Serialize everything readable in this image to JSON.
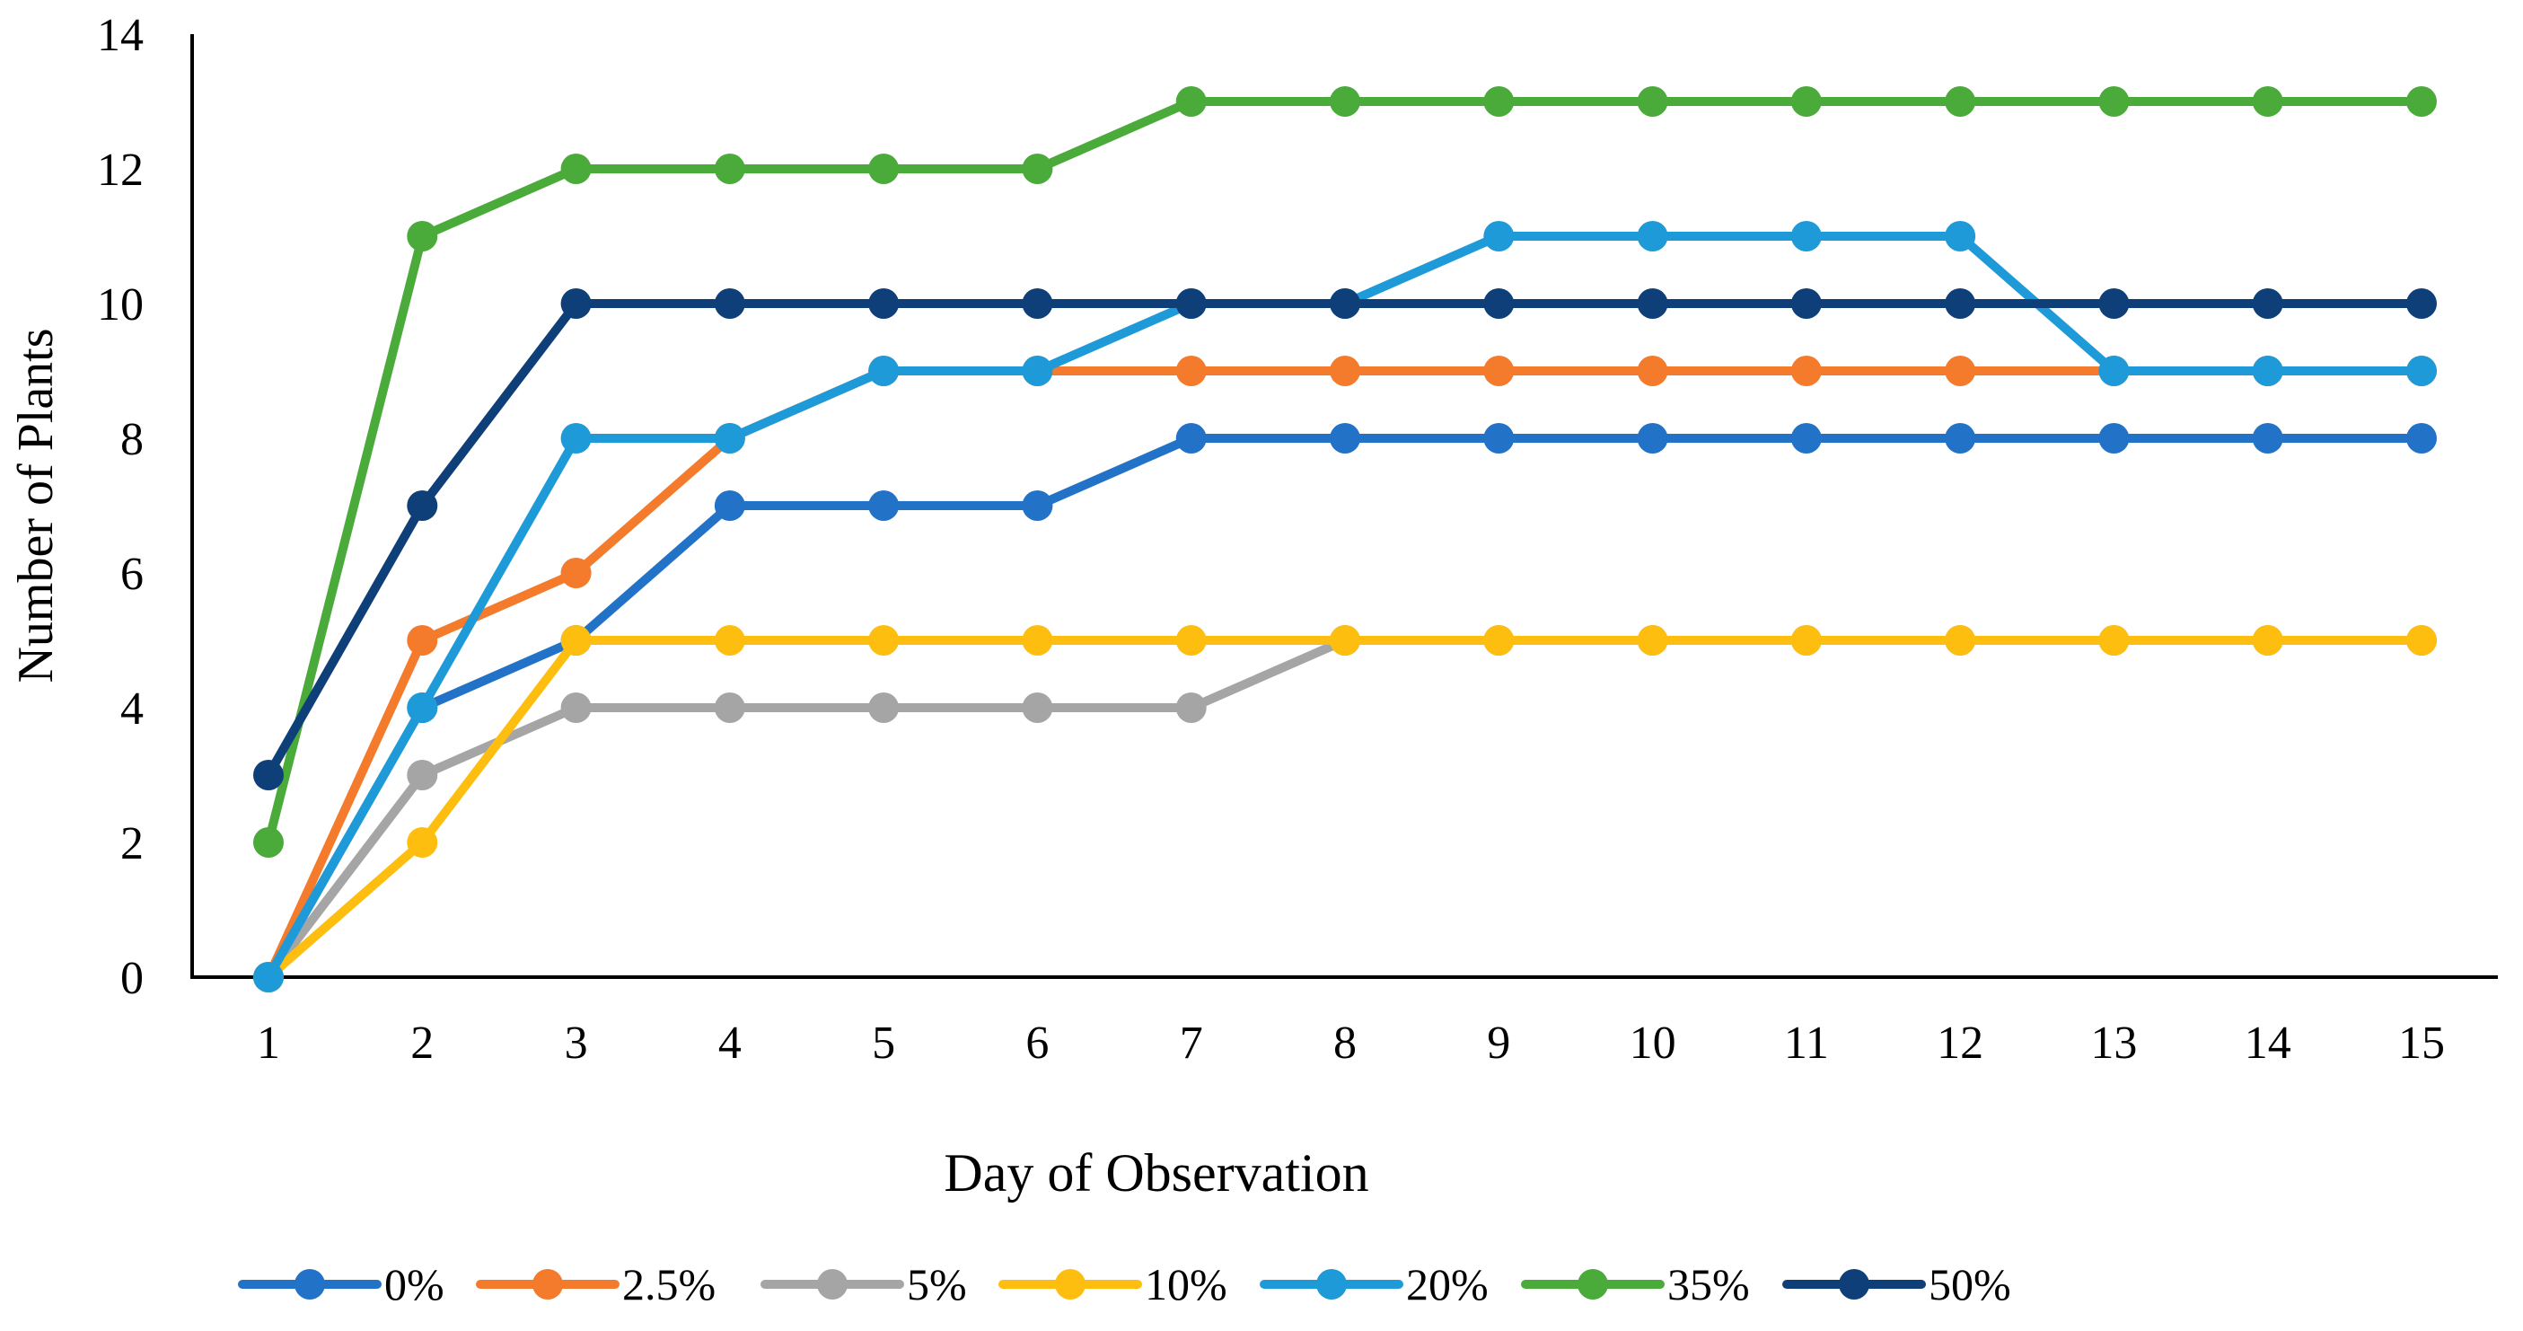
{
  "chart_data": {
    "type": "line",
    "title": "",
    "xlabel": "Day of Observation",
    "ylabel": "Number of Plants",
    "x": [
      1,
      2,
      3,
      4,
      5,
      6,
      7,
      8,
      9,
      10,
      11,
      12,
      13,
      14,
      15
    ],
    "x_tick_labels": [
      "1",
      "2",
      "3",
      "4",
      "5",
      "6",
      "7",
      "8",
      "9",
      "10",
      "11",
      "12",
      "13",
      "14",
      "15"
    ],
    "ylim": [
      0,
      14
    ],
    "y_ticks": [
      0,
      2,
      4,
      6,
      8,
      10,
      12,
      14
    ],
    "y_tick_labels": [
      "0",
      "2",
      "4",
      "6",
      "8",
      "10",
      "12",
      "14"
    ],
    "grid": false,
    "legend_position": "bottom",
    "series": [
      {
        "name": "0%",
        "color": "#2272C8",
        "values": [
          0,
          4,
          5,
          7,
          7,
          7,
          8,
          8,
          8,
          8,
          8,
          8,
          8,
          8,
          8
        ]
      },
      {
        "name": "2.5%",
        "color": "#F47B2B",
        "values": [
          0,
          5,
          6,
          8,
          9,
          9,
          9,
          9,
          9,
          9,
          9,
          9,
          9,
          9,
          9
        ]
      },
      {
        "name": "5%",
        "color": "#A5A5A5",
        "values": [
          0,
          3,
          4,
          4,
          4,
          4,
          4,
          5,
          5,
          5,
          5,
          5,
          5,
          5,
          5
        ]
      },
      {
        "name": "10%",
        "color": "#FDBE10",
        "values": [
          0,
          2,
          5,
          5,
          5,
          5,
          5,
          5,
          5,
          5,
          5,
          5,
          5,
          5,
          5
        ]
      },
      {
        "name": "20%",
        "color": "#1E9AD8",
        "values": [
          0,
          4,
          8,
          8,
          9,
          9,
          10,
          10,
          11,
          11,
          11,
          11,
          9,
          9,
          9
        ]
      },
      {
        "name": "35%",
        "color": "#4AAA3A",
        "values": [
          2,
          11,
          12,
          12,
          12,
          12,
          13,
          13,
          13,
          13,
          13,
          13,
          13,
          13,
          13
        ]
      },
      {
        "name": "50%",
        "color": "#0E3F78",
        "values": [
          3,
          7,
          10,
          10,
          10,
          10,
          10,
          10,
          10,
          10,
          10,
          10,
          10,
          10,
          10
        ]
      }
    ]
  }
}
